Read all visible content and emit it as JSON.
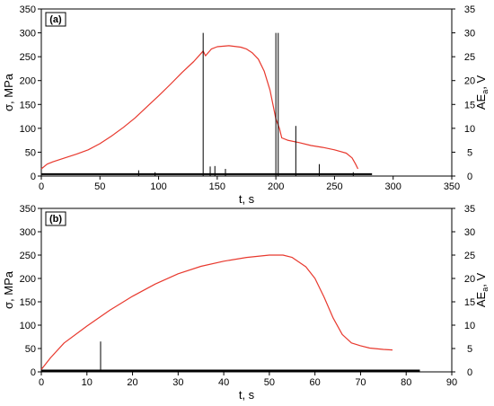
{
  "chart_data": [
    {
      "type": "line",
      "panel_label": "(a)",
      "xlabel": "t, s",
      "ylabel_left": "σ, MPa",
      "ylabel_right_main": "AE",
      "ylabel_right_sub": "a",
      "ylabel_right_unit": ", V",
      "xlim": [
        0,
        350
      ],
      "ylim_left": [
        0,
        350
      ],
      "ylim_right": [
        0,
        35
      ],
      "x_ticks": [
        0,
        50,
        100,
        150,
        200,
        250,
        300,
        350
      ],
      "y_left_ticks": [
        0,
        50,
        100,
        150,
        200,
        250,
        300,
        350
      ],
      "y_right_ticks": [
        0,
        5,
        10,
        15,
        20,
        25,
        30,
        35
      ],
      "grid": false,
      "series": [
        {
          "axis": "left",
          "color": "#e8392e",
          "x": [
            0,
            5,
            10,
            20,
            30,
            40,
            50,
            60,
            70,
            80,
            90,
            100,
            110,
            120,
            130,
            138,
            140,
            145,
            150,
            160,
            170,
            175,
            180,
            185,
            190,
            195,
            200,
            203,
            205,
            210,
            220,
            230,
            240,
            250,
            260,
            265,
            268,
            270
          ],
          "y": [
            15,
            25,
            30,
            38,
            46,
            55,
            68,
            84,
            102,
            122,
            145,
            168,
            192,
            217,
            240,
            262,
            252,
            266,
            271,
            273,
            270,
            266,
            258,
            245,
            220,
            180,
            120,
            100,
            80,
            75,
            70,
            64,
            60,
            55,
            48,
            38,
            25,
            15
          ]
        },
        {
          "axis": "right",
          "color": "#000000",
          "type": "spikes",
          "baseline": 0.4,
          "x": [
            83,
            97,
            138,
            144,
            148,
            157,
            200,
            202,
            217,
            237,
            266
          ],
          "y": [
            1.2,
            0.8,
            30,
            2.0,
            2.1,
            1.5,
            30,
            30,
            10.5,
            2.5,
            0.8
          ]
        }
      ]
    },
    {
      "type": "line",
      "panel_label": "(b)",
      "xlabel": "t, s",
      "ylabel_left": "σ, MPa",
      "ylabel_right_main": "AE",
      "ylabel_right_sub": "a",
      "ylabel_right_unit": ", V",
      "xlim": [
        0,
        90
      ],
      "ylim_left": [
        0,
        350
      ],
      "ylim_right": [
        0,
        35
      ],
      "x_ticks": [
        0,
        10,
        20,
        30,
        40,
        50,
        60,
        70,
        80,
        90
      ],
      "y_left_ticks": [
        0,
        50,
        100,
        150,
        200,
        250,
        300,
        350
      ],
      "y_right_ticks": [
        0,
        5,
        10,
        15,
        20,
        25,
        30,
        35
      ],
      "grid": false,
      "series": [
        {
          "axis": "left",
          "color": "#e8392e",
          "x": [
            0,
            2,
            5,
            10,
            15,
            20,
            25,
            30,
            35,
            40,
            45,
            50,
            53,
            55,
            58,
            60,
            62,
            64,
            66,
            68,
            70,
            72,
            75,
            77
          ],
          "y": [
            5,
            30,
            62,
            98,
            132,
            162,
            188,
            210,
            226,
            237,
            245,
            250,
            250,
            245,
            225,
            200,
            160,
            115,
            80,
            62,
            56,
            51,
            48,
            47
          ]
        },
        {
          "axis": "right",
          "color": "#000000",
          "type": "spikes",
          "baseline": 0.3,
          "x": [
            13
          ],
          "y": [
            6.5
          ]
        }
      ]
    }
  ]
}
